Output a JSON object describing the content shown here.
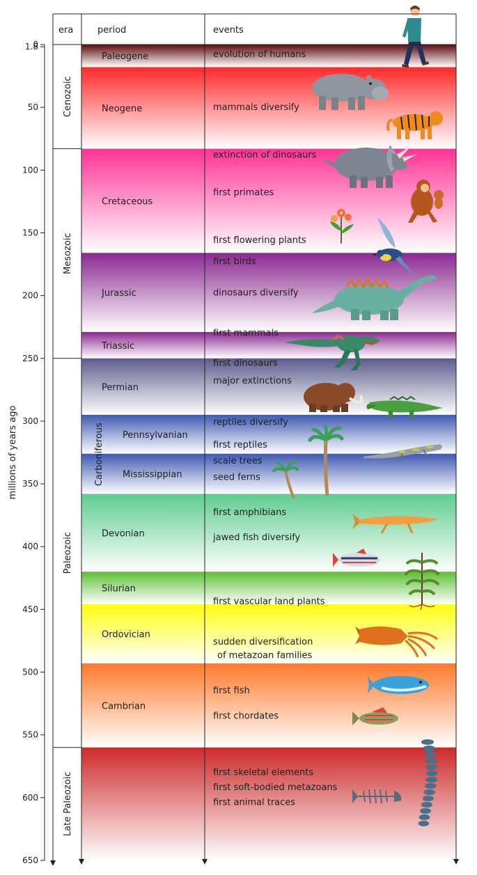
{
  "headers": {
    "era": "era",
    "period": "period",
    "events": "events"
  },
  "axis": {
    "label": "millions of years ago",
    "min": 0,
    "max": 650,
    "ticks": [
      "0",
      "1.8",
      "50",
      "100",
      "150",
      "200",
      "250",
      "300",
      "350",
      "400",
      "450",
      "500",
      "550",
      "600",
      "650"
    ],
    "tick_values": [
      0,
      1.8,
      50,
      100,
      150,
      200,
      250,
      300,
      350,
      400,
      450,
      500,
      550,
      600,
      650
    ]
  },
  "eras": [
    {
      "name": "Cenozoic",
      "start": 0,
      "end": 83
    },
    {
      "name": "Mesozoic",
      "start": 83,
      "end": 250
    },
    {
      "name": "Paleozoic",
      "start": 250,
      "end": 560
    },
    {
      "name": "Late Paleozoic",
      "start": 560,
      "end": 650
    }
  ],
  "carboniferous": {
    "name": "Carboniferous",
    "start": 295,
    "end": 358
  },
  "periods": [
    {
      "name": "Paleogene",
      "start": 0,
      "end": 18,
      "color": "#5c0a0e",
      "indent": false
    },
    {
      "name": "Neogene",
      "start": 18,
      "end": 83,
      "color": "#ff2a2a",
      "indent": false
    },
    {
      "name": "Cretaceous",
      "start": 83,
      "end": 166,
      "color": "#ff3396",
      "indent": false
    },
    {
      "name": "Jurassic",
      "start": 166,
      "end": 229,
      "color": "#8a2a90",
      "indent": false
    },
    {
      "name": "Triassic",
      "start": 229,
      "end": 250,
      "color": "#8a2a90",
      "indent": false
    },
    {
      "name": "Permian",
      "start": 250,
      "end": 295,
      "color": "#5c5c8c",
      "indent": false
    },
    {
      "name": "Pennsylvanian",
      "start": 295,
      "end": 326,
      "color": "#3f5bb0",
      "indent": true
    },
    {
      "name": "Mississippian",
      "start": 326,
      "end": 358,
      "color": "#3f5bb0",
      "indent": true
    },
    {
      "name": "Devonian",
      "start": 358,
      "end": 420,
      "color": "#5ecc8e",
      "indent": false
    },
    {
      "name": "Silurian",
      "start": 420,
      "end": 446,
      "color": "#5cc035",
      "indent": false
    },
    {
      "name": "Ordovician",
      "start": 446,
      "end": 493,
      "color": "#ffff10",
      "indent": false
    },
    {
      "name": "Cambrian",
      "start": 493,
      "end": 560,
      "color": "#ff7a2a",
      "indent": false
    },
    {
      "name": "",
      "start": 560,
      "end": 650,
      "color": "#cc2a2a",
      "indent": false
    }
  ],
  "events": [
    {
      "text": "evolution of humans",
      "at": 10
    },
    {
      "text": "mammals diversify",
      "at": 52
    },
    {
      "text": "extinction of dinosaurs",
      "at": 90
    },
    {
      "text": "first primates",
      "at": 120
    },
    {
      "text": "first flowering plants",
      "at": 158
    },
    {
      "text": "first birds",
      "at": 175
    },
    {
      "text": "dinosaurs diversify",
      "at": 200
    },
    {
      "text": "first mammals",
      "at": 232
    },
    {
      "text": "first dinosaurs",
      "at": 256
    },
    {
      "text": "major extinctions",
      "at": 270
    },
    {
      "text": "reptiles diversify",
      "at": 303
    },
    {
      "text": "first reptiles",
      "at": 321
    },
    {
      "text": "scale trees",
      "at": 334
    },
    {
      "text": "seed ferns",
      "at": 347
    },
    {
      "text": "first amphibians",
      "at": 375
    },
    {
      "text": "jawed fish diversify",
      "at": 395
    },
    {
      "text": "first vascular land plants",
      "at": 446
    },
    {
      "text": "sudden diversification",
      "at": 478
    },
    {
      "text": "of metazoan families",
      "at": 489,
      "indent": true
    },
    {
      "text": "first fish",
      "at": 517
    },
    {
      "text": "first chordates",
      "at": 537
    },
    {
      "text": "first skeletal elements",
      "at": 582
    },
    {
      "text": "first soft-bodied metazoans",
      "at": 594
    },
    {
      "text": "first animal traces",
      "at": 606
    }
  ],
  "illustrations": [
    "walking-person",
    "hippopotamus",
    "tiger",
    "triceratops",
    "monkey",
    "flower",
    "bird",
    "sauropod",
    "theropod",
    "mammoth",
    "crocodile",
    "palm-tree",
    "lizard",
    "fish-tetrapod",
    "colorful-fish",
    "fern-plant",
    "squid",
    "blue-fish",
    "perch-fish",
    "fish-skeleton",
    "spine"
  ]
}
